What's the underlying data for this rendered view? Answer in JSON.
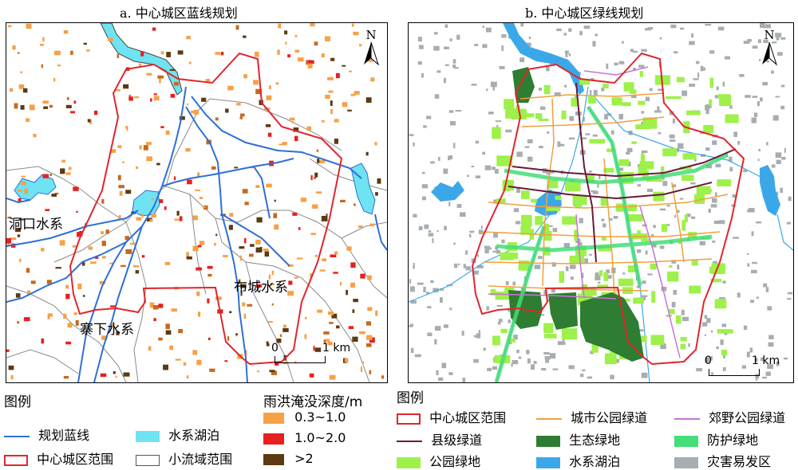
{
  "panel_a": {
    "title": "a. 中心城区蓝线规划",
    "north": "N",
    "scale_zero": "0",
    "scale_end": "1 km",
    "labels": {
      "dongkou": "洞口水系",
      "zhaixia": "寨下水系",
      "bucheng": "布城水系"
    }
  },
  "panel_b": {
    "title": "b. 中心城区绿线规划",
    "north": "N",
    "scale_zero": "0",
    "scale_end": "1 km"
  },
  "legend_a": {
    "title": "图例",
    "items": [
      {
        "label": "规划蓝线",
        "color": "#2f6fd6"
      },
      {
        "label": "中心城区范围",
        "color": "#e0262c"
      },
      {
        "label": "水系湖泊",
        "color": "#6fe3f2"
      },
      {
        "label": "小流域范围",
        "color": "#555555"
      }
    ]
  },
  "legend_depth": {
    "title": "雨洪淹没深度/m",
    "items": [
      {
        "label": "0.3~1.0",
        "color": "#f7a046"
      },
      {
        "label": "1.0~2.0",
        "color": "#e81f1f"
      },
      {
        "label": ">2",
        "color": "#5c3a12"
      }
    ]
  },
  "legend_b": {
    "title": "图例",
    "items": [
      {
        "label": "中心城区范围",
        "color": "#e0262c"
      },
      {
        "label": "城市公园绿道",
        "color": "#f0a03c"
      },
      {
        "label": "郊野公园绿道",
        "color": "#c873d8"
      },
      {
        "label": "县级绿道",
        "color": "#6b1a3a"
      },
      {
        "label": "生态绿地",
        "color": "#2e7d32"
      },
      {
        "label": "防护绿地",
        "color": "#44dd77"
      },
      {
        "label": "公园绿地",
        "color": "#9ef04a"
      },
      {
        "label": "水系湖泊",
        "color": "#3aa8e8"
      },
      {
        "label": "灾害易发区",
        "color": "#a7adb1"
      }
    ]
  }
}
